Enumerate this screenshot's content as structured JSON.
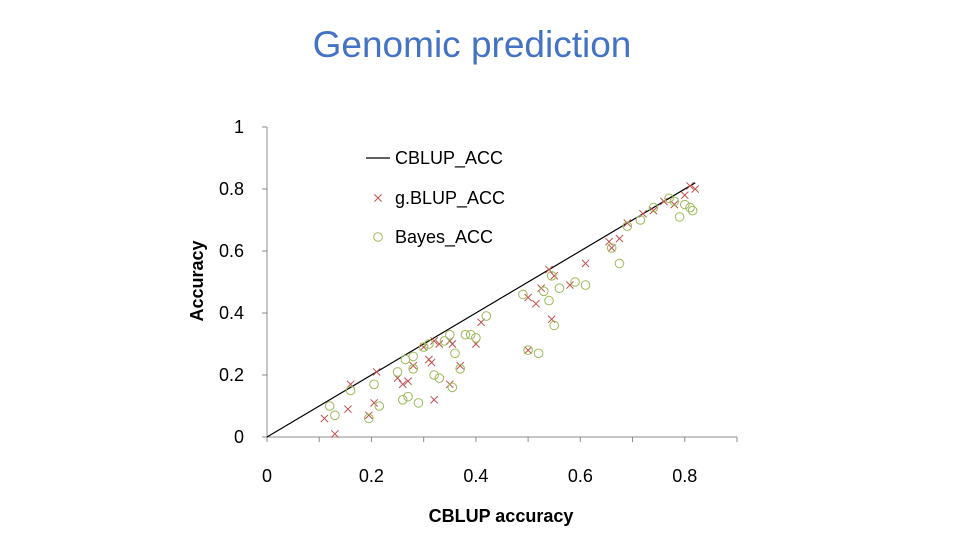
{
  "slide": {
    "title": "Genomic prediction"
  },
  "chart_data": {
    "type": "scatter",
    "xlabel": "CBLUP accuracy",
    "ylabel": "Accuracy",
    "xlim": [
      0,
      0.9
    ],
    "ylim": [
      0,
      1
    ],
    "xticks": [
      0,
      0.2,
      0.4,
      0.6,
      0.8
    ],
    "xtick_labels": [
      "0",
      "0.2",
      "0.4",
      "0.6",
      "0.8"
    ],
    "yticks": [
      0,
      0.2,
      0.4,
      0.6,
      0.8,
      1
    ],
    "ytick_labels": [
      "0",
      "0.2",
      "0.4",
      "0.6",
      "0.8",
      "1"
    ],
    "grid": false,
    "legend_position": "top-left",
    "series": [
      {
        "name": "CBLUP_ACC",
        "kind": "line",
        "color": "#000000",
        "x": [
          0,
          0.82
        ],
        "y": [
          0,
          0.82
        ]
      },
      {
        "name": "g.BLUP_ACC",
        "kind": "scatter",
        "marker": "x",
        "color": "#c0504d",
        "x": [
          0.11,
          0.13,
          0.155,
          0.16,
          0.195,
          0.205,
          0.21,
          0.25,
          0.26,
          0.27,
          0.28,
          0.3,
          0.31,
          0.315,
          0.32,
          0.32,
          0.33,
          0.35,
          0.35,
          0.355,
          0.37,
          0.4,
          0.41,
          0.5,
          0.5,
          0.515,
          0.525,
          0.54,
          0.545,
          0.55,
          0.58,
          0.61,
          0.655,
          0.66,
          0.675,
          0.69,
          0.72,
          0.74,
          0.76,
          0.78,
          0.8,
          0.81,
          0.82
        ],
        "y": [
          0.06,
          0.01,
          0.09,
          0.17,
          0.07,
          0.11,
          0.21,
          0.19,
          0.17,
          0.18,
          0.23,
          0.29,
          0.25,
          0.24,
          0.12,
          0.31,
          0.3,
          0.17,
          0.31,
          0.3,
          0.23,
          0.3,
          0.37,
          0.45,
          0.28,
          0.43,
          0.48,
          0.54,
          0.38,
          0.52,
          0.49,
          0.56,
          0.63,
          0.61,
          0.64,
          0.69,
          0.72,
          0.73,
          0.76,
          0.75,
          0.78,
          0.81,
          0.8
        ]
      },
      {
        "name": "Bayes_ACC",
        "kind": "scatter",
        "marker": "o",
        "color": "#9bbb59",
        "x": [
          0.12,
          0.13,
          0.16,
          0.195,
          0.205,
          0.215,
          0.25,
          0.26,
          0.265,
          0.27,
          0.28,
          0.28,
          0.29,
          0.3,
          0.31,
          0.32,
          0.33,
          0.34,
          0.35,
          0.355,
          0.36,
          0.37,
          0.38,
          0.39,
          0.4,
          0.42,
          0.49,
          0.5,
          0.52,
          0.53,
          0.54,
          0.545,
          0.55,
          0.56,
          0.59,
          0.61,
          0.66,
          0.675,
          0.69,
          0.715,
          0.74,
          0.77,
          0.78,
          0.79,
          0.8,
          0.81,
          0.815
        ],
        "y": [
          0.1,
          0.07,
          0.15,
          0.06,
          0.17,
          0.1,
          0.21,
          0.12,
          0.25,
          0.13,
          0.26,
          0.22,
          0.11,
          0.29,
          0.3,
          0.2,
          0.19,
          0.31,
          0.33,
          0.16,
          0.27,
          0.22,
          0.33,
          0.33,
          0.32,
          0.39,
          0.46,
          0.28,
          0.27,
          0.47,
          0.44,
          0.52,
          0.36,
          0.48,
          0.5,
          0.49,
          0.61,
          0.56,
          0.68,
          0.7,
          0.74,
          0.77,
          0.76,
          0.71,
          0.75,
          0.74,
          0.73
        ]
      }
    ]
  }
}
